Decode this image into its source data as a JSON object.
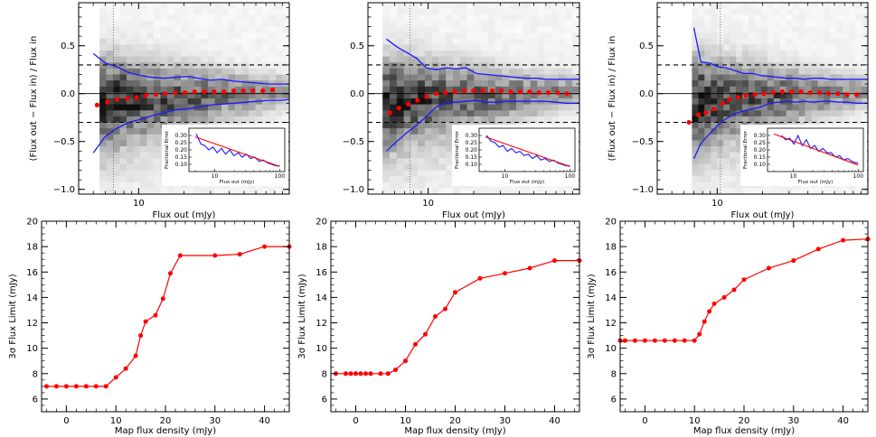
{
  "figure": {
    "colors": {
      "axis": "#000000",
      "envelope": "#1a1aff",
      "median": "#ff0000",
      "fit": "#ff0000",
      "density_max": "#000000",
      "density_min": "#ffffff"
    }
  },
  "chart_data": [
    {
      "type": "heatmap",
      "panel": "top-left",
      "xlabel": "Flux out (mJy)",
      "ylabel": "(Flux out − Flux in) / Flux in",
      "xscale": "log",
      "xlim": [
        4,
        100
      ],
      "ylim": [
        -1.05,
        0.95
      ],
      "yticks": [
        -1.0,
        -0.5,
        0.0,
        0.5
      ],
      "ytick_labels": [
        "−1.0",
        "−0.5",
        "0.0",
        "0.5"
      ],
      "xticks_major": [
        10
      ],
      "xtick_labels": [
        "10"
      ],
      "hlines_dashed": [
        0.3,
        -0.3
      ],
      "hline_solid": 0,
      "vline_dotted": 6.8,
      "heatmap_x_start": 5.5,
      "median_points": {
        "x": [
          5.3,
          6.2,
          7.2,
          8.4,
          9.7,
          11.2,
          13.0,
          15.0,
          17.5,
          20.3,
          23.5,
          27.3,
          31.7,
          36.8,
          42.7,
          49.6,
          57.5,
          66.7,
          77.4
        ],
        "y": [
          -0.12,
          -0.09,
          -0.06,
          -0.05,
          -0.04,
          -0.02,
          -0.01,
          0.0,
          0.01,
          0.01,
          0.02,
          0.02,
          0.02,
          0.02,
          0.03,
          0.03,
          0.03,
          0.03,
          0.04
        ]
      },
      "upper_envelope": {
        "x": [
          5.0,
          6.0,
          7.2,
          8.6,
          10.3,
          12.3,
          14.7,
          17.6,
          21.0,
          25.1,
          30.0,
          35.9,
          42.9,
          51.3,
          61.3,
          73.3,
          87.6,
          100
        ],
        "y": [
          0.42,
          0.32,
          0.28,
          0.22,
          0.19,
          0.17,
          0.16,
          0.17,
          0.18,
          0.16,
          0.14,
          0.15,
          0.13,
          0.12,
          0.11,
          0.1,
          0.1,
          0.1
        ]
      },
      "lower_envelope": {
        "x": [
          5.0,
          6.0,
          7.2,
          8.6,
          10.3,
          12.3,
          14.7,
          17.6,
          21.0,
          25.1,
          30.0,
          35.9,
          42.9,
          51.3,
          61.3,
          73.3,
          87.6,
          100
        ],
        "y": [
          -0.62,
          -0.45,
          -0.36,
          -0.3,
          -0.27,
          -0.23,
          -0.2,
          -0.17,
          -0.16,
          -0.14,
          -0.12,
          -0.11,
          -0.1,
          -0.09,
          -0.08,
          -0.07,
          -0.07,
          -0.06
        ]
      },
      "inset": {
        "xlabel": "Flux out (mJy)",
        "ylabel": "Fractional Error",
        "xlim": [
          4,
          120
        ],
        "ylim": [
          0.05,
          0.35
        ],
        "yticks": [
          0.1,
          0.15,
          0.2,
          0.25,
          0.3
        ],
        "ytick_labels": [
          "0.10",
          "0.15",
          "0.20",
          "0.25",
          "0.30"
        ],
        "xticks": [
          10,
          100
        ],
        "xtick_labels": [
          "10",
          "100"
        ],
        "measured": {
          "x": [
            5.2,
            6.1,
            7.0,
            8.1,
            9.4,
            10.9,
            12.7,
            14.7,
            17.0,
            19.8,
            23.0,
            26.6,
            30.9,
            35.8,
            41.5,
            48.2,
            55.9,
            64.8,
            75.2,
            87.2,
            100
          ],
          "y": [
            0.31,
            0.24,
            0.23,
            0.2,
            0.22,
            0.18,
            0.21,
            0.17,
            0.2,
            0.16,
            0.18,
            0.15,
            0.17,
            0.14,
            0.15,
            0.12,
            0.13,
            0.11,
            0.1,
            0.09,
            0.09
          ]
        },
        "fit": {
          "x": [
            5.0,
            100
          ],
          "y": [
            0.29,
            0.085
          ]
        }
      }
    },
    {
      "type": "heatmap",
      "panel": "top-middle",
      "xlabel": "Flux out (mJy)",
      "ylabel": "",
      "xscale": "log",
      "xlim": [
        4,
        100
      ],
      "ylim": [
        -1.05,
        0.95
      ],
      "yticks": [
        -1.0,
        -0.5,
        0.0,
        0.5
      ],
      "ytick_labels": [
        "−1.0",
        "−0.5",
        "0.0",
        "0.5"
      ],
      "xticks_major": [
        10
      ],
      "xtick_labels": [
        "10"
      ],
      "hlines_dashed": [
        0.3,
        -0.3
      ],
      "hline_solid": 0,
      "vline_dotted": 7.6,
      "heatmap_x_start": 5.0,
      "median_points": {
        "x": [
          5.6,
          6.4,
          7.4,
          8.5,
          9.8,
          11.3,
          13.0,
          15.0,
          17.3,
          19.9,
          23.0,
          26.5,
          30.5,
          35.2,
          40.6,
          46.8,
          53.9,
          62.1,
          71.6,
          82.5
        ],
        "y": [
          -0.2,
          -0.15,
          -0.11,
          -0.07,
          -0.03,
          0.0,
          0.01,
          0.02,
          0.03,
          0.03,
          0.03,
          0.03,
          0.03,
          0.02,
          0.02,
          0.02,
          0.01,
          0.01,
          0.01,
          0.0
        ]
      },
      "upper_envelope": {
        "x": [
          5.3,
          6.2,
          7.2,
          8.4,
          9.7,
          11.3,
          13.2,
          15.3,
          17.8,
          20.8,
          24.2,
          28.2,
          32.8,
          38.2,
          44.5,
          51.8,
          60.3,
          70.2,
          81.7,
          95.1,
          100
        ],
        "y": [
          0.57,
          0.49,
          0.43,
          0.37,
          0.27,
          0.25,
          0.27,
          0.26,
          0.27,
          0.21,
          0.2,
          0.19,
          0.18,
          0.17,
          0.16,
          0.16,
          0.15,
          0.15,
          0.15,
          0.15,
          0.15
        ]
      },
      "lower_envelope": {
        "x": [
          5.3,
          6.2,
          7.2,
          8.4,
          9.7,
          11.3,
          13.2,
          15.3,
          17.8,
          20.8,
          24.2,
          28.2,
          32.8,
          38.2,
          44.5,
          51.8,
          60.3,
          70.2,
          81.7,
          95.1,
          100
        ],
        "y": [
          -0.6,
          -0.5,
          -0.41,
          -0.33,
          -0.24,
          -0.14,
          -0.09,
          -0.09,
          -0.08,
          -0.07,
          -0.09,
          -0.09,
          -0.08,
          -0.08,
          -0.08,
          -0.08,
          -0.08,
          -0.09,
          -0.1,
          -0.1,
          -0.1
        ]
      },
      "inset": {
        "xlabel": "Flux out (mJy)",
        "ylabel": "Fractional Error",
        "xlim": [
          4,
          120
        ],
        "ylim": [
          0.05,
          0.35
        ],
        "yticks": [
          0.1,
          0.15,
          0.2,
          0.25,
          0.3
        ],
        "ytick_labels": [
          "0.10",
          "0.15",
          "0.20",
          "0.25",
          "0.30"
        ],
        "xticks": [
          10,
          100
        ],
        "xtick_labels": [
          "10",
          "100"
        ],
        "measured": {
          "x": [
            5.2,
            6.1,
            7.0,
            8.1,
            9.4,
            10.9,
            12.7,
            14.7,
            17.0,
            19.8,
            23.0,
            26.6,
            30.9,
            35.8,
            41.5,
            48.2,
            55.9,
            64.8,
            75.2,
            87.2,
            100
          ],
          "y": [
            0.3,
            0.26,
            0.25,
            0.22,
            0.23,
            0.19,
            0.21,
            0.18,
            0.19,
            0.16,
            0.17,
            0.14,
            0.16,
            0.13,
            0.14,
            0.12,
            0.13,
            0.11,
            0.1,
            0.09,
            0.09
          ]
        },
        "fit": {
          "x": [
            5.0,
            100
          ],
          "y": [
            0.29,
            0.085
          ]
        }
      }
    },
    {
      "type": "heatmap",
      "panel": "top-right",
      "xlabel": "Flux out (mJy)",
      "ylabel": "(Flux out − Flux in) / Flux in",
      "xscale": "log",
      "xlim": [
        4,
        100
      ],
      "ylim": [
        -1.05,
        0.95
      ],
      "yticks": [
        -1.0,
        -0.5,
        0.0,
        0.5
      ],
      "ytick_labels": [
        "−1.0",
        "−0.5",
        "0.0",
        "0.5"
      ],
      "xticks_major": [
        10
      ],
      "xtick_labels": [
        "10"
      ],
      "hlines_dashed": [
        0.3,
        -0.3
      ],
      "hline_solid": 0,
      "vline_dotted": 10.5,
      "heatmap_x_start": 6.8,
      "median_points": {
        "x": [
          6.5,
          7.5,
          8.4,
          9.5,
          10.9,
          12.0,
          13.8,
          15.5,
          17.8,
          20.4,
          23.5,
          27.1,
          31.2,
          36.0,
          41.4,
          47.7,
          55.0,
          63.3,
          72.9,
          84.0
        ],
        "y": [
          -0.3,
          -0.22,
          -0.2,
          -0.16,
          -0.1,
          -0.06,
          -0.04,
          -0.02,
          -0.01,
          0.0,
          0.01,
          0.02,
          0.02,
          0.02,
          0.01,
          0.01,
          0.0,
          0.0,
          -0.01,
          -0.01
        ]
      },
      "upper_envelope": {
        "x": [
          7.0,
          7.8,
          8.9,
          10.1,
          11.5,
          13.1,
          15.0,
          17.1,
          19.5,
          22.3,
          25.5,
          29.1,
          33.2,
          37.9,
          43.3,
          49.4,
          56.4,
          64.3,
          73.4,
          83.8,
          95.6,
          100
        ],
        "y": [
          0.69,
          0.33,
          0.32,
          0.28,
          0.27,
          0.24,
          0.21,
          0.21,
          0.19,
          0.18,
          0.17,
          0.16,
          0.16,
          0.15,
          0.16,
          0.16,
          0.15,
          0.15,
          0.15,
          0.15,
          0.15,
          0.15
        ]
      },
      "lower_envelope": {
        "x": [
          7.0,
          7.8,
          8.9,
          10.1,
          11.5,
          13.1,
          15.0,
          17.1,
          19.5,
          22.3,
          25.5,
          29.1,
          33.2,
          37.9,
          43.3,
          49.4,
          56.4,
          64.3,
          73.4,
          83.8,
          95.6,
          100
        ],
        "y": [
          -0.68,
          -0.52,
          -0.42,
          -0.33,
          -0.26,
          -0.21,
          -0.18,
          -0.16,
          -0.14,
          -0.1,
          -0.09,
          -0.08,
          -0.09,
          -0.08,
          -0.09,
          -0.08,
          -0.08,
          -0.09,
          -0.09,
          -0.1,
          -0.1,
          -0.1
        ]
      },
      "inset": {
        "xlabel": "Flux out (mJy)",
        "ylabel": "Fractional Error",
        "xlim": [
          4,
          120
        ],
        "ylim": [
          0.05,
          0.35
        ],
        "yticks": [
          0.1,
          0.15,
          0.2,
          0.25,
          0.3
        ],
        "ytick_labels": [
          "0.10",
          "0.15",
          "0.20",
          "0.25",
          "0.30"
        ],
        "xticks": [
          10,
          100
        ],
        "xtick_labels": [
          "10",
          "100"
        ],
        "measured": {
          "x": [
            6.6,
            7.6,
            8.8,
            10.2,
            11.8,
            13.7,
            15.9,
            18.4,
            21.3,
            24.7,
            28.6,
            33.1,
            38.4,
            44.5,
            51.5,
            59.7,
            69.2,
            80.1,
            92.8,
            100
          ],
          "y": [
            0.3,
            0.27,
            0.28,
            0.24,
            0.3,
            0.23,
            0.27,
            0.21,
            0.23,
            0.19,
            0.21,
            0.18,
            0.18,
            0.15,
            0.16,
            0.13,
            0.14,
            0.12,
            0.11,
            0.11
          ]
        },
        "fit": {
          "x": [
            5.0,
            100
          ],
          "y": [
            0.31,
            0.095
          ]
        }
      }
    },
    {
      "type": "line",
      "panel": "bottom-left",
      "xlabel": "Map flux density (mJy)",
      "ylabel": "3σ Flux Limit (mJy)",
      "xlim": [
        -5,
        45
      ],
      "ylim": [
        5,
        20
      ],
      "xticks": [
        0,
        10,
        20,
        30,
        40
      ],
      "yticks": [
        6,
        8,
        10,
        12,
        14,
        16,
        18,
        20
      ],
      "series": [
        {
          "x": [
            -4,
            -2,
            0,
            2,
            4,
            6,
            8,
            10,
            12,
            14,
            15,
            16,
            18,
            19.5,
            21,
            23,
            30,
            35,
            40,
            45
          ],
          "y": [
            7.0,
            7.0,
            7.0,
            7.0,
            7.0,
            7.0,
            7.0,
            7.7,
            8.4,
            9.4,
            11.0,
            12.1,
            12.6,
            13.9,
            15.9,
            17.3,
            17.3,
            17.4,
            18.0,
            18.0
          ]
        }
      ]
    },
    {
      "type": "line",
      "panel": "bottom-middle",
      "xlabel": "Map flux density (mJy)",
      "ylabel": "3σ Flux Limit (mJy)",
      "xlim": [
        -5,
        45
      ],
      "ylim": [
        5,
        20
      ],
      "xticks": [
        0,
        10,
        20,
        30,
        40
      ],
      "yticks": [
        6,
        8,
        10,
        12,
        14,
        16,
        18,
        20
      ],
      "series": [
        {
          "x": [
            -4,
            -2,
            -1,
            0,
            1,
            2,
            3,
            5,
            6.5,
            8,
            10,
            12,
            14,
            16,
            18,
            20,
            25,
            30,
            35,
            40,
            45
          ],
          "y": [
            8.0,
            8.0,
            8.0,
            8.0,
            8.0,
            8.0,
            8.0,
            8.0,
            8.0,
            8.3,
            9.0,
            10.3,
            11.1,
            12.5,
            13.1,
            14.4,
            15.5,
            15.9,
            16.3,
            16.9,
            16.9
          ]
        }
      ]
    },
    {
      "type": "line",
      "panel": "bottom-right",
      "xlabel": "Map flux density (mJy)",
      "ylabel": "3σ Flux Limit (mJy)",
      "xlim": [
        -5,
        45
      ],
      "ylim": [
        5,
        20
      ],
      "xticks": [
        0,
        10,
        20,
        30,
        40
      ],
      "yticks": [
        6,
        8,
        10,
        12,
        14,
        16,
        18,
        20
      ],
      "series": [
        {
          "x": [
            -5,
            -4,
            -2,
            0,
            2,
            4,
            6,
            8,
            10,
            11,
            12,
            13,
            14,
            16,
            18,
            20,
            25,
            30,
            35,
            40,
            45
          ],
          "y": [
            10.6,
            10.6,
            10.6,
            10.6,
            10.6,
            10.6,
            10.6,
            10.6,
            10.6,
            11.1,
            12.1,
            12.9,
            13.5,
            14.0,
            14.6,
            15.4,
            16.3,
            16.9,
            17.8,
            18.5,
            18.6
          ]
        }
      ]
    }
  ]
}
